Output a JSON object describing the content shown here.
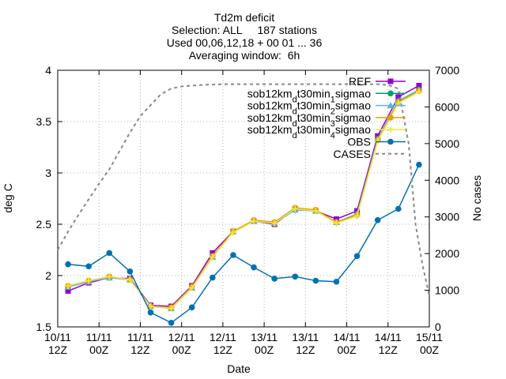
{
  "chart_data": {
    "type": "line",
    "title_lines": [
      "Td2m deficit",
      "Selection: ALL     187 stations",
      "Used 00,06,12,18 + 00 01 ... 36",
      "Averaging window:  6h"
    ],
    "xlabel": "Date",
    "ylabel": "deg C",
    "y2label": "No cases",
    "ylim": [
      1.5,
      4
    ],
    "y2lim": [
      0,
      7000
    ],
    "yticks": [
      "1.5",
      "2",
      "2.5",
      "3",
      "3.5",
      "4"
    ],
    "y2ticks": [
      "0",
      "1000",
      "2000",
      "3000",
      "4000",
      "5000",
      "6000",
      "7000"
    ],
    "xticks": [
      {
        "l1": "10/11",
        "l2": "12Z"
      },
      {
        "l1": "11/11",
        "l2": "00Z"
      },
      {
        "l1": "11/11",
        "l2": "12Z"
      },
      {
        "l1": "12/11",
        "l2": "00Z"
      },
      {
        "l1": "12/11",
        "l2": "12Z"
      },
      {
        "l1": "13/11",
        "l2": "00Z"
      },
      {
        "l1": "13/11",
        "l2": "12Z"
      },
      {
        "l1": "14/11",
        "l2": "00Z"
      },
      {
        "l1": "14/11",
        "l2": "12Z"
      },
      {
        "l1": "15/11",
        "l2": "00Z"
      }
    ],
    "x_hours": [
      3,
      9,
      15,
      21,
      27,
      33,
      39,
      45,
      51,
      57,
      63,
      69,
      75,
      81,
      87,
      93,
      99,
      105
    ],
    "grid": true,
    "legend_position": "top-right",
    "series": [
      {
        "label_parts": [
          [
            "REF",
            ""
          ]
        ],
        "color": "#9400d3",
        "marker": "square",
        "values": [
          1.85,
          1.93,
          1.98,
          1.97,
          1.71,
          1.7,
          1.9,
          2.22,
          2.43,
          2.53,
          2.5,
          2.65,
          2.63,
          2.55,
          2.63,
          3.36,
          3.74,
          3.85
        ]
      },
      {
        "label_parts": [
          [
            "sob12km",
            ""
          ],
          [
            "d",
            "sub"
          ],
          [
            "t30min",
            ""
          ],
          [
            "1",
            "sub"
          ],
          [
            "sigmao",
            ""
          ]
        ],
        "color": "#009e73",
        "marker": "circle",
        "values": [
          1.89,
          1.94,
          1.98,
          1.96,
          1.7,
          1.68,
          1.88,
          2.18,
          2.43,
          2.53,
          2.51,
          2.64,
          2.63,
          2.52,
          2.6,
          3.33,
          3.7,
          3.81
        ]
      },
      {
        "label_parts": [
          [
            "sob12km",
            ""
          ],
          [
            "d",
            "sub"
          ],
          [
            "t30min",
            ""
          ],
          [
            "2",
            "sub"
          ],
          [
            "sigmao",
            ""
          ]
        ],
        "color": "#56b4e9",
        "marker": "triangle",
        "values": [
          1.89,
          1.94,
          1.98,
          1.96,
          1.7,
          1.68,
          1.88,
          2.18,
          2.43,
          2.53,
          2.51,
          2.64,
          2.63,
          2.52,
          2.6,
          3.33,
          3.7,
          3.81
        ]
      },
      {
        "label_parts": [
          [
            "sob12km",
            ""
          ],
          [
            "d",
            "sub"
          ],
          [
            "t30min",
            ""
          ],
          [
            "3",
            "sub"
          ],
          [
            "sigmao",
            ""
          ]
        ],
        "color": "#e69f00",
        "marker": "circle",
        "values": [
          1.9,
          1.95,
          1.99,
          1.96,
          1.7,
          1.69,
          1.89,
          2.19,
          2.43,
          2.54,
          2.52,
          2.66,
          2.64,
          2.52,
          2.59,
          3.32,
          3.69,
          3.8
        ]
      },
      {
        "label_parts": [
          [
            "sob12km",
            ""
          ],
          [
            "d",
            "sub"
          ],
          [
            "t30min",
            ""
          ],
          [
            "4",
            "sub"
          ],
          [
            "sigmao",
            ""
          ]
        ],
        "color": "#f0e442",
        "marker": "cross",
        "values": [
          1.9,
          1.95,
          1.99,
          1.96,
          1.7,
          1.68,
          1.88,
          2.18,
          2.42,
          2.53,
          2.51,
          2.65,
          2.63,
          2.51,
          2.58,
          3.31,
          3.68,
          3.79
        ]
      },
      {
        "label_parts": [
          [
            "OBS",
            ""
          ]
        ],
        "color": "#0072b2",
        "marker": "circle",
        "values": [
          2.11,
          2.09,
          2.22,
          2.04,
          1.64,
          1.54,
          1.69,
          1.98,
          2.2,
          2.08,
          1.97,
          1.99,
          1.95,
          1.94,
          2.19,
          2.54,
          2.65,
          3.08
        ]
      },
      {
        "label_parts": [
          [
            "CASES",
            ""
          ]
        ],
        "color": "#888888",
        "marker": "none",
        "dashed": true,
        "axis": "y2",
        "x_hours": [
          0,
          3,
          6,
          9,
          12,
          15,
          18,
          21,
          24,
          27,
          30,
          33,
          36,
          39,
          42,
          45,
          48,
          51,
          54,
          57,
          60,
          63,
          66,
          69,
          72,
          75,
          78,
          81,
          84,
          87,
          90,
          93,
          96,
          99,
          102,
          104,
          106,
          108
        ],
        "values": [
          2100,
          2600,
          3050,
          3480,
          3900,
          4300,
          4800,
          5300,
          5750,
          6050,
          6350,
          6500,
          6560,
          6580,
          6600,
          6610,
          6620,
          6620,
          6620,
          6620,
          6620,
          6620,
          6620,
          6620,
          6620,
          6620,
          6620,
          6620,
          6620,
          6620,
          6620,
          6620,
          6600,
          6500,
          5000,
          2800,
          1700,
          850
        ]
      }
    ]
  }
}
